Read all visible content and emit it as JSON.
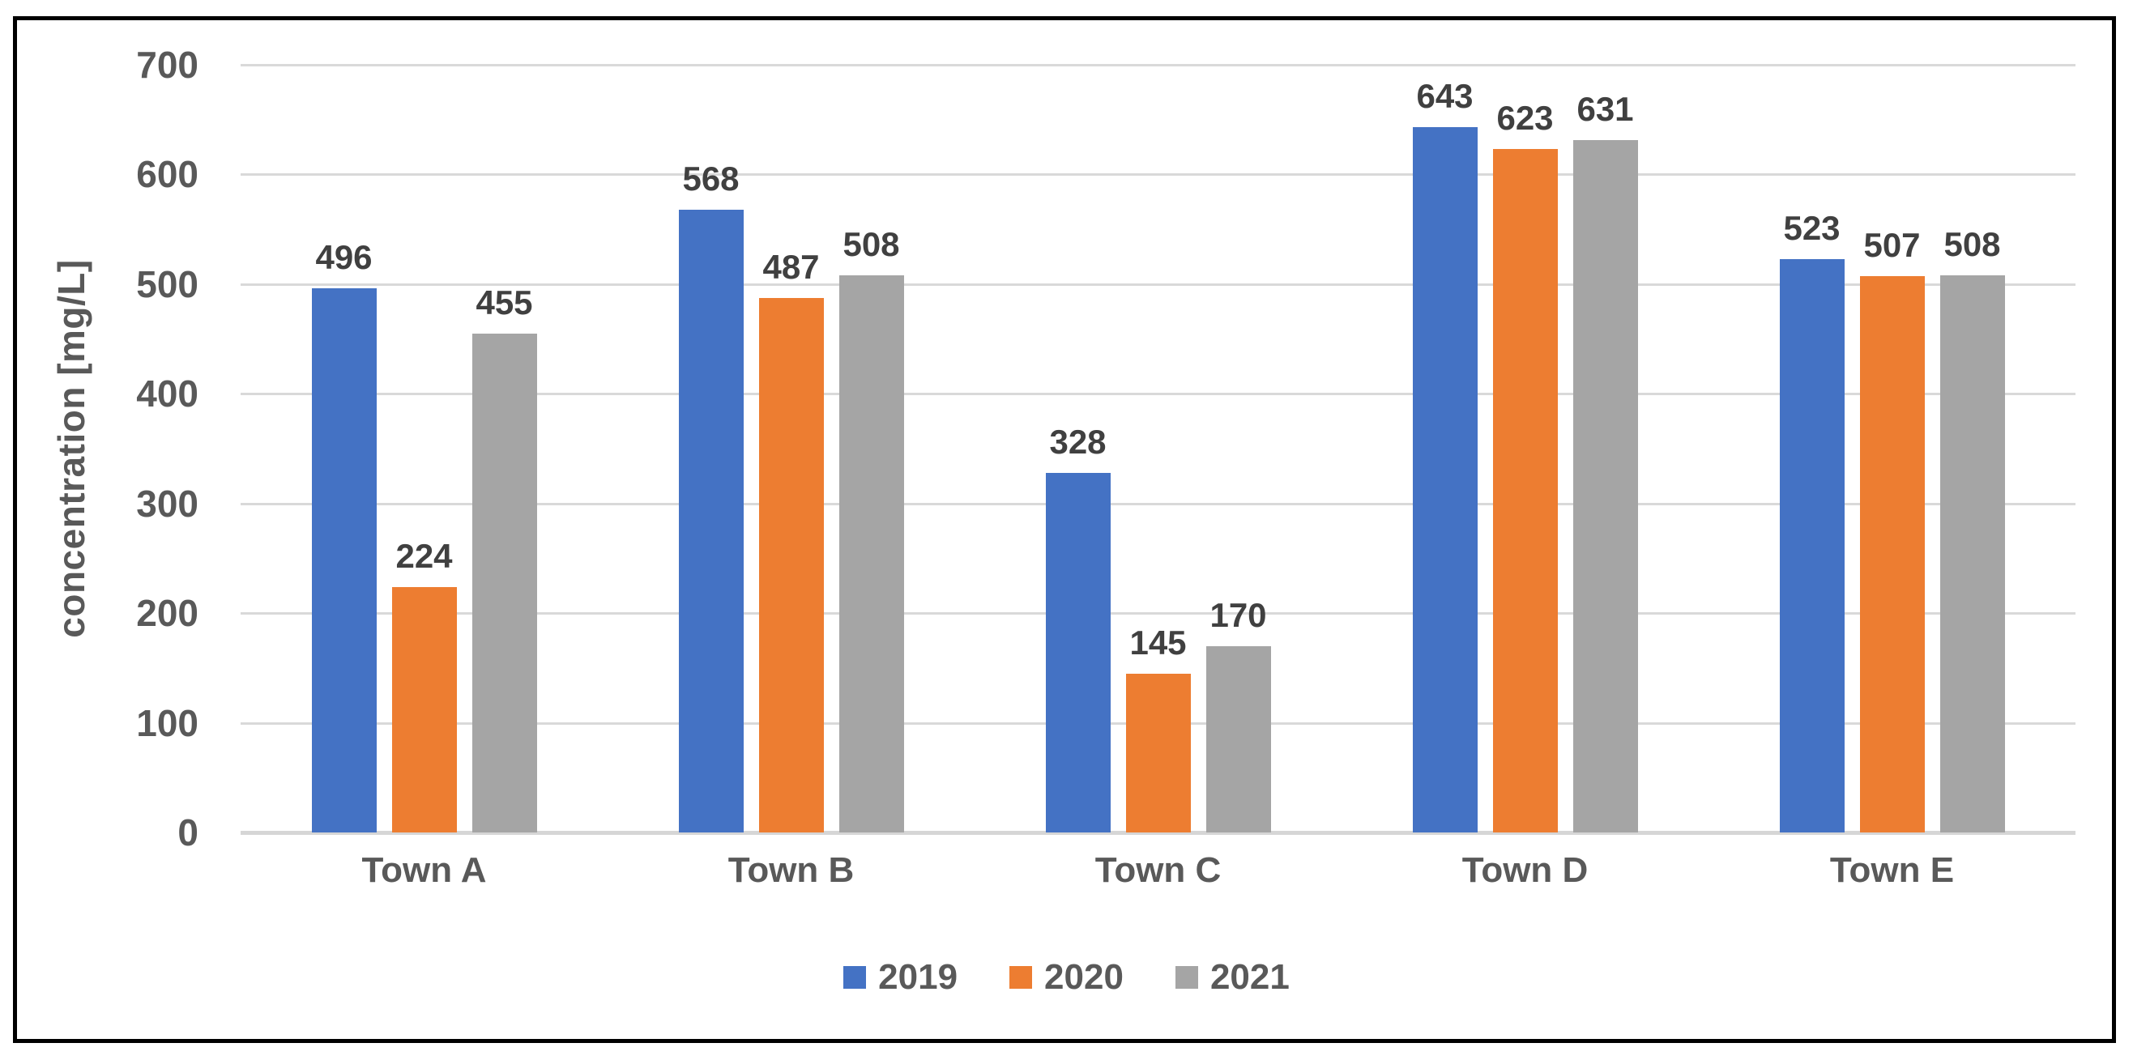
{
  "chart_data": {
    "type": "bar",
    "title": "",
    "categories": [
      "Town A",
      "Town B",
      "Town C",
      "Town D",
      "Town E"
    ],
    "series": [
      {
        "name": "2019",
        "color": "#4472C4",
        "values": [
          496,
          568,
          328,
          643,
          523
        ]
      },
      {
        "name": "2020",
        "color": "#ED7D31",
        "values": [
          224,
          487,
          145,
          623,
          507
        ]
      },
      {
        "name": "2021",
        "color": "#A5A5A5",
        "values": [
          455,
          508,
          170,
          631,
          508
        ]
      }
    ],
    "xlabel": "",
    "ylabel": "concentration [mg/L]",
    "ylim": [
      0,
      700
    ],
    "yticks": [
      0,
      100,
      200,
      300,
      400,
      500,
      600,
      700
    ],
    "grid": true,
    "data_labels": true,
    "legend_position": "bottom"
  },
  "colors": {
    "grid": "#D9D9D9",
    "axis_line": "#D6D6D6",
    "tick_text": "#595959",
    "data_label_text": "#404040",
    "border": "#000000",
    "background": "#FFFFFF"
  }
}
